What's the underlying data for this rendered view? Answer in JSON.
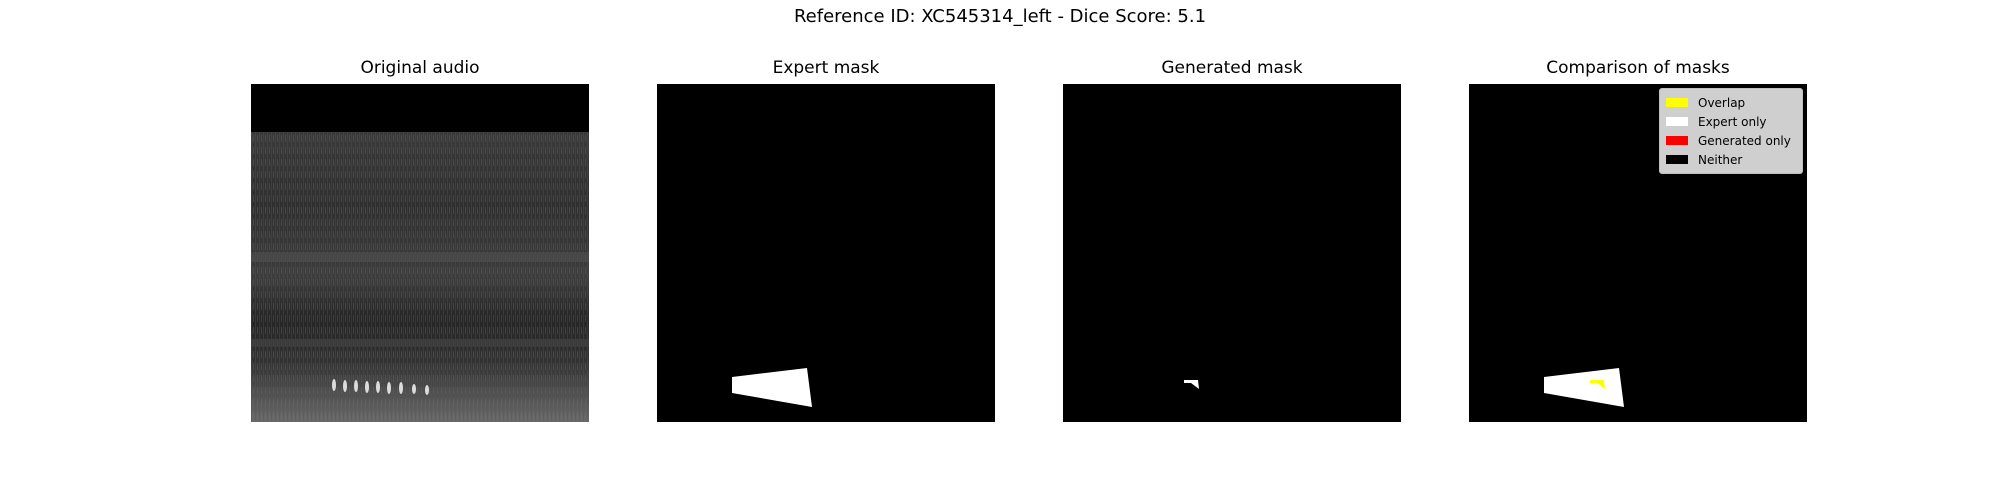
{
  "figure": {
    "title": "Reference ID: XC545314_left - Dice Score: 5.1"
  },
  "panels": [
    {
      "title": "Original audio"
    },
    {
      "title": "Expert mask"
    },
    {
      "title": "Generated mask"
    },
    {
      "title": "Comparison of masks"
    }
  ],
  "legend": {
    "items": [
      {
        "label": "Overlap",
        "color": "#ffff00"
      },
      {
        "label": "Expert only",
        "color": "#ffffff"
      },
      {
        "label": "Generated only",
        "color": "#ff0000"
      },
      {
        "label": "Neither",
        "color": "#000000"
      }
    ]
  },
  "colors": {
    "background": "#000000",
    "expert_mask": "#ffffff",
    "overlap": "#ffff00",
    "generated_only": "#ff0000"
  }
}
